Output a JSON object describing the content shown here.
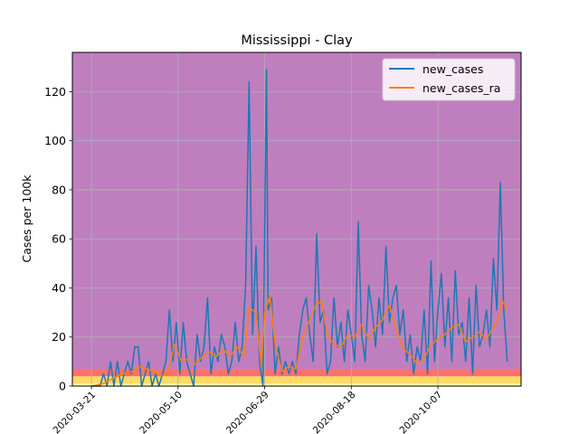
{
  "chart_data": {
    "type": "line",
    "title": "Mississippi - Clay",
    "xlabel": "",
    "ylabel": "Cases per 100k",
    "x_ticks": [
      "2020-03-21",
      "2020-05-10",
      "2020-06-29",
      "2020-08-18",
      "2020-10-07"
    ],
    "x_range": [
      "2020-03-10",
      "2020-11-24"
    ],
    "ylim": [
      0,
      136
    ],
    "y_ticks": [
      0,
      20,
      40,
      60,
      80,
      100,
      120
    ],
    "grid": true,
    "legend_position": "top-right",
    "bands": [
      {
        "from": 0,
        "to": 1,
        "color": "#ffffa0"
      },
      {
        "from": 1,
        "to": 4,
        "color": "#ffd966"
      },
      {
        "from": 4,
        "to": 7,
        "color": "#ff6f6f"
      },
      {
        "from": 7,
        "to": 136,
        "color": "#bf7fbf"
      }
    ],
    "series": [
      {
        "name": "new_cases",
        "color": "#1f77b4",
        "points": [
          [
            "2020-03-21",
            0
          ],
          [
            "2020-03-26",
            0
          ],
          [
            "2020-03-28",
            5
          ],
          [
            "2020-03-30",
            0
          ],
          [
            "2020-04-01",
            10
          ],
          [
            "2020-04-03",
            0
          ],
          [
            "2020-04-05",
            10
          ],
          [
            "2020-04-07",
            0
          ],
          [
            "2020-04-09",
            5
          ],
          [
            "2020-04-11",
            10
          ],
          [
            "2020-04-13",
            5
          ],
          [
            "2020-04-15",
            16
          ],
          [
            "2020-04-17",
            16
          ],
          [
            "2020-04-19",
            0
          ],
          [
            "2020-04-21",
            5
          ],
          [
            "2020-04-23",
            10
          ],
          [
            "2020-04-25",
            0
          ],
          [
            "2020-04-27",
            5
          ],
          [
            "2020-04-29",
            0
          ],
          [
            "2020-05-01",
            5
          ],
          [
            "2020-05-03",
            10
          ],
          [
            "2020-05-05",
            31
          ],
          [
            "2020-05-07",
            10
          ],
          [
            "2020-05-09",
            26
          ],
          [
            "2020-05-11",
            5
          ],
          [
            "2020-05-13",
            26
          ],
          [
            "2020-05-15",
            10
          ],
          [
            "2020-05-17",
            5
          ],
          [
            "2020-05-19",
            0
          ],
          [
            "2020-05-21",
            21
          ],
          [
            "2020-05-23",
            10
          ],
          [
            "2020-05-25",
            16
          ],
          [
            "2020-05-27",
            36
          ],
          [
            "2020-05-29",
            5
          ],
          [
            "2020-05-31",
            16
          ],
          [
            "2020-06-02",
            10
          ],
          [
            "2020-06-04",
            21
          ],
          [
            "2020-06-06",
            16
          ],
          [
            "2020-06-08",
            5
          ],
          [
            "2020-06-10",
            10
          ],
          [
            "2020-06-12",
            26
          ],
          [
            "2020-06-14",
            10
          ],
          [
            "2020-06-16",
            16
          ],
          [
            "2020-06-18",
            41
          ],
          [
            "2020-06-20",
            124
          ],
          [
            "2020-06-22",
            21
          ],
          [
            "2020-06-24",
            57
          ],
          [
            "2020-06-26",
            10
          ],
          [
            "2020-06-28",
            0
          ],
          [
            "2020-06-30",
            129
          ],
          [
            "2020-07-01",
            31
          ],
          [
            "2020-07-03",
            36
          ],
          [
            "2020-07-05",
            5
          ],
          [
            "2020-07-07",
            16
          ],
          [
            "2020-07-09",
            5
          ],
          [
            "2020-07-11",
            10
          ],
          [
            "2020-07-13",
            5
          ],
          [
            "2020-07-15",
            10
          ],
          [
            "2020-07-17",
            5
          ],
          [
            "2020-07-19",
            21
          ],
          [
            "2020-07-21",
            31
          ],
          [
            "2020-07-23",
            36
          ],
          [
            "2020-07-25",
            21
          ],
          [
            "2020-07-27",
            10
          ],
          [
            "2020-07-29",
            62
          ],
          [
            "2020-07-31",
            26
          ],
          [
            "2020-08-02",
            31
          ],
          [
            "2020-08-04",
            5
          ],
          [
            "2020-08-06",
            10
          ],
          [
            "2020-08-08",
            36
          ],
          [
            "2020-08-10",
            16
          ],
          [
            "2020-08-12",
            26
          ],
          [
            "2020-08-14",
            10
          ],
          [
            "2020-08-16",
            31
          ],
          [
            "2020-08-18",
            21
          ],
          [
            "2020-08-20",
            10
          ],
          [
            "2020-08-22",
            67
          ],
          [
            "2020-08-24",
            21
          ],
          [
            "2020-08-26",
            10
          ],
          [
            "2020-08-28",
            41
          ],
          [
            "2020-08-30",
            31
          ],
          [
            "2020-09-01",
            16
          ],
          [
            "2020-09-03",
            36
          ],
          [
            "2020-09-05",
            21
          ],
          [
            "2020-09-07",
            57
          ],
          [
            "2020-09-09",
            26
          ],
          [
            "2020-09-11",
            36
          ],
          [
            "2020-09-13",
            41
          ],
          [
            "2020-09-15",
            21
          ],
          [
            "2020-09-17",
            31
          ],
          [
            "2020-09-19",
            10
          ],
          [
            "2020-09-21",
            21
          ],
          [
            "2020-09-23",
            5
          ],
          [
            "2020-09-25",
            16
          ],
          [
            "2020-09-27",
            10
          ],
          [
            "2020-09-29",
            31
          ],
          [
            "2020-10-01",
            5
          ],
          [
            "2020-10-03",
            51
          ],
          [
            "2020-10-05",
            10
          ],
          [
            "2020-10-07",
            31
          ],
          [
            "2020-10-09",
            46
          ],
          [
            "2020-10-11",
            16
          ],
          [
            "2020-10-13",
            36
          ],
          [
            "2020-10-15",
            10
          ],
          [
            "2020-10-17",
            47
          ],
          [
            "2020-10-19",
            21
          ],
          [
            "2020-10-21",
            26
          ],
          [
            "2020-10-23",
            10
          ],
          [
            "2020-10-25",
            36
          ],
          [
            "2020-10-27",
            5
          ],
          [
            "2020-10-29",
            41
          ],
          [
            "2020-10-31",
            16
          ],
          [
            "2020-11-02",
            21
          ],
          [
            "2020-11-04",
            31
          ],
          [
            "2020-11-06",
            16
          ],
          [
            "2020-11-08",
            52
          ],
          [
            "2020-11-10",
            31
          ],
          [
            "2020-11-12",
            83
          ],
          [
            "2020-11-14",
            31
          ],
          [
            "2020-11-16",
            10
          ]
        ]
      },
      {
        "name": "new_cases_ra",
        "color": "#ff7f0e",
        "points": [
          [
            "2020-03-21",
            0
          ],
          [
            "2020-03-28",
            1
          ],
          [
            "2020-04-02",
            3
          ],
          [
            "2020-04-08",
            5
          ],
          [
            "2020-04-14",
            6
          ],
          [
            "2020-04-18",
            8
          ],
          [
            "2020-04-22",
            7
          ],
          [
            "2020-04-26",
            6
          ],
          [
            "2020-04-30",
            4
          ],
          [
            "2020-05-04",
            5
          ],
          [
            "2020-05-08",
            17
          ],
          [
            "2020-05-12",
            10
          ],
          [
            "2020-05-16",
            11
          ],
          [
            "2020-05-20",
            9
          ],
          [
            "2020-05-24",
            12
          ],
          [
            "2020-05-28",
            14
          ],
          [
            "2020-06-01",
            12
          ],
          [
            "2020-06-05",
            15
          ],
          [
            "2020-06-09",
            12
          ],
          [
            "2020-06-13",
            16
          ],
          [
            "2020-06-17",
            12
          ],
          [
            "2020-06-20",
            32
          ],
          [
            "2020-06-24",
            30
          ],
          [
            "2020-06-27",
            8
          ],
          [
            "2020-06-29",
            30
          ],
          [
            "2020-07-02",
            37
          ],
          [
            "2020-07-05",
            17
          ],
          [
            "2020-07-09",
            6
          ],
          [
            "2020-07-13",
            8
          ],
          [
            "2020-07-17",
            7
          ],
          [
            "2020-07-21",
            20
          ],
          [
            "2020-07-25",
            27
          ],
          [
            "2020-07-29",
            34
          ],
          [
            "2020-08-01",
            34
          ],
          [
            "2020-08-04",
            21
          ],
          [
            "2020-08-08",
            17
          ],
          [
            "2020-08-12",
            16
          ],
          [
            "2020-08-16",
            21
          ],
          [
            "2020-08-20",
            20
          ],
          [
            "2020-08-24",
            25
          ],
          [
            "2020-08-28",
            19
          ],
          [
            "2020-09-01",
            24
          ],
          [
            "2020-09-05",
            27
          ],
          [
            "2020-09-09",
            33
          ],
          [
            "2020-09-13",
            23
          ],
          [
            "2020-09-17",
            15
          ],
          [
            "2020-09-21",
            13
          ],
          [
            "2020-09-25",
            9
          ],
          [
            "2020-09-29",
            11
          ],
          [
            "2020-10-03",
            17
          ],
          [
            "2020-10-07",
            19
          ],
          [
            "2020-10-11",
            21
          ],
          [
            "2020-10-15",
            24
          ],
          [
            "2020-10-19",
            25
          ],
          [
            "2020-10-23",
            18
          ],
          [
            "2020-10-27",
            20
          ],
          [
            "2020-10-31",
            22
          ],
          [
            "2020-11-04",
            19
          ],
          [
            "2020-11-08",
            24
          ],
          [
            "2020-11-11",
            28
          ],
          [
            "2020-11-13",
            35
          ],
          [
            "2020-11-16",
            31
          ]
        ]
      }
    ]
  }
}
